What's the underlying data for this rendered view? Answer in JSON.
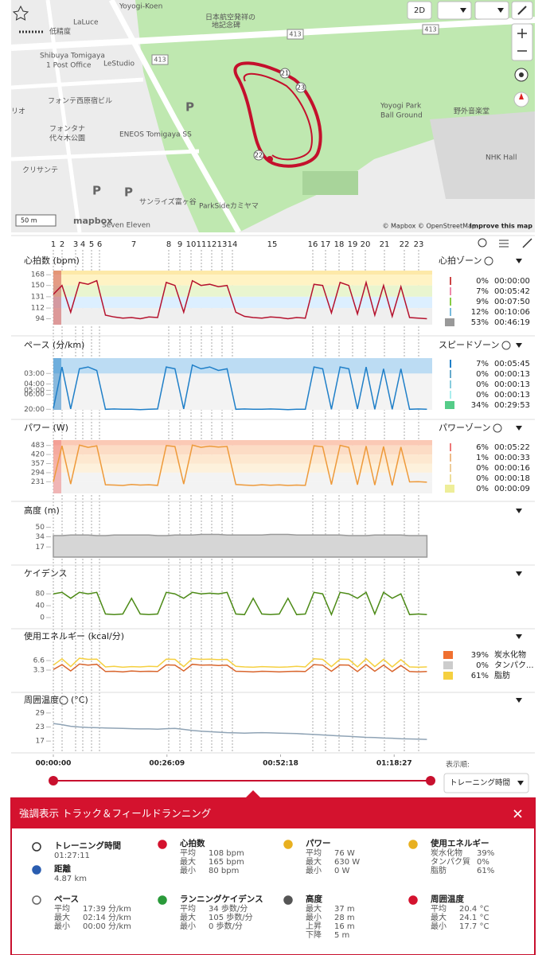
{
  "map": {
    "labels": [
      "Yoyogi-Koen",
      "LaLuce",
      "低精度",
      "Shibuya Tomigaya",
      "1 Post Office",
      "LeStudio",
      "フォンテ西原宿ビル",
      "リオ",
      "フォンタナ",
      "代々木公園",
      "ENEOS Tomigaya SS",
      "クリサンテ",
      "サンライズ富ヶ谷",
      "ParkSideカミヤマ",
      "Seven Eleven",
      "日本航空発祥の",
      "地記念碑",
      "Yoyogi Park",
      "Ball Ground",
      "野外音楽堂",
      "NHK Hall",
      "413",
      "413",
      "413",
      "P",
      "P",
      "P"
    ],
    "lap_markers": [
      "21",
      "23",
      "22"
    ],
    "scale": "50 m",
    "logo": "mapbox",
    "attribution": "© Mapbox © OpenStreetMap",
    "improve": "Improve this map",
    "mode_button": "2D"
  },
  "laps": [
    1,
    2,
    3,
    4,
    5,
    6,
    7,
    8,
    9,
    10,
    11,
    12,
    13,
    14,
    15,
    16,
    17,
    18,
    19,
    20,
    21,
    22,
    23
  ],
  "timeline": {
    "x": [
      0,
      2,
      4,
      6,
      8,
      10,
      12,
      14,
      16,
      18,
      20,
      22,
      24,
      26,
      28,
      30,
      32,
      34,
      36,
      38,
      40,
      42,
      44,
      46,
      48,
      50,
      52,
      54,
      56,
      58,
      60,
      62,
      64,
      66,
      68,
      70,
      72,
      74,
      76,
      78,
      80,
      82,
      84,
      86
    ],
    "xlim": [
      0,
      87.2
    ],
    "xticks": [
      {
        "value": 0,
        "label": "00:00:00"
      },
      {
        "value": 26.15,
        "label": "00:26:09"
      },
      {
        "value": 52.3,
        "label": "00:52:18"
      },
      {
        "value": 78.45,
        "label": "01:18:27"
      }
    ]
  },
  "sort": {
    "label": "表示順:",
    "value": "トレーニング時間"
  },
  "charts": [
    {
      "type": "line",
      "title": "心拍数 (bpm)",
      "ylim": [
        84,
        175
      ],
      "yticks": [
        94,
        112,
        131,
        150,
        168
      ],
      "series": [
        {
          "color": "#b5122e",
          "values": [
            135,
            150,
            105,
            155,
            152,
            158,
            100,
            97,
            95,
            96,
            94,
            97,
            96,
            155,
            150,
            105,
            158,
            150,
            152,
            148,
            150,
            105,
            98,
            96,
            95,
            97,
            96,
            94,
            96,
            95,
            152,
            150,
            104,
            155,
            150,
            102,
            155,
            100,
            150,
            98,
            148,
            96,
            95,
            94
          ]
        }
      ],
      "zones": {
        "title": "心拍ゾーン",
        "rows": [
          {
            "percent": "0%",
            "time": "00:00:00"
          },
          {
            "percent": "7%",
            "time": "00:05:42"
          },
          {
            "percent": "9%",
            "time": "00:07:50"
          },
          {
            "percent": "12%",
            "time": "00:10:06"
          },
          {
            "percent": "53%",
            "time": "00:46:19"
          }
        ]
      }
    },
    {
      "type": "line",
      "title": "ペース (分/km)",
      "scale": "reciprocal",
      "ylim": [
        2.2,
        22
      ],
      "yticks": [
        {
          "value": 3,
          "label": "03:00"
        },
        {
          "value": 4,
          "label": "04:00"
        },
        {
          "value": 5,
          "label": "05:00"
        },
        {
          "value": 6,
          "label": "06:00"
        },
        {
          "value": 20,
          "label": "20:00"
        }
      ],
      "series": [
        {
          "color": "#1f7fc8",
          "values": [
            18,
            2.6,
            19,
            2.7,
            2.6,
            2.8,
            20,
            19,
            20,
            20,
            21,
            20,
            19,
            2.6,
            2.7,
            19,
            2.5,
            2.7,
            2.6,
            2.8,
            2.7,
            20,
            19,
            20,
            20,
            19,
            20,
            21,
            20,
            20,
            2.6,
            2.7,
            20,
            2.6,
            2.7,
            19,
            2.6,
            20,
            2.7,
            20,
            2.7,
            20,
            19,
            20
          ]
        }
      ],
      "zones": {
        "title": "スピードゾーン",
        "rows": [
          {
            "percent": "7%",
            "time": "00:05:45"
          },
          {
            "percent": "0%",
            "time": "00:00:13"
          },
          {
            "percent": "0%",
            "time": "00:00:13"
          },
          {
            "percent": "0%",
            "time": "00:00:13"
          },
          {
            "percent": "34%",
            "time": "00:29:53"
          }
        ]
      }
    },
    {
      "type": "line",
      "title": "パワー (W)",
      "ylim": [
        150,
        520
      ],
      "yticks": [
        231,
        294,
        357,
        420,
        483
      ],
      "series": [
        {
          "color": "#ee9a3a",
          "values": [
            230,
            480,
            215,
            485,
            470,
            480,
            210,
            208,
            205,
            212,
            208,
            210,
            206,
            482,
            475,
            215,
            485,
            470,
            478,
            472,
            476,
            212,
            208,
            205,
            210,
            207,
            209,
            205,
            208,
            206,
            480,
            474,
            212,
            483,
            470,
            210,
            478,
            208,
            475,
            206,
            472,
            230,
            232,
            228
          ]
        }
      ],
      "zones": {
        "title": "パワーゾーン",
        "rows": [
          {
            "percent": "6%",
            "time": "00:05:22"
          },
          {
            "percent": "1%",
            "time": "00:00:33"
          },
          {
            "percent": "0%",
            "time": "00:00:16"
          },
          {
            "percent": "0%",
            "time": "00:00:18"
          },
          {
            "percent": "0%",
            "time": "00:00:09"
          }
        ]
      }
    },
    {
      "type": "area",
      "title": "高度 (m)",
      "ylim": [
        0,
        60
      ],
      "yticks": [
        17,
        34,
        50
      ],
      "series": [
        {
          "color": "#999999",
          "values": [
            36,
            36,
            37,
            37,
            37,
            36,
            36,
            37,
            37,
            37,
            37,
            37,
            36,
            36,
            37,
            37,
            37,
            38,
            38,
            38,
            37,
            37,
            37,
            37,
            37,
            38,
            38,
            38,
            37,
            37,
            37,
            37,
            37,
            37,
            36,
            36,
            36,
            37,
            37,
            37,
            37,
            36,
            36,
            36
          ]
        }
      ]
    },
    {
      "type": "line",
      "title": "ケイデンス",
      "ylim": [
        0,
        110
      ],
      "yticks": [
        0,
        40,
        80
      ],
      "series": [
        {
          "color": "#4c8a16",
          "values": [
            80,
            85,
            65,
            85,
            80,
            85,
            12,
            10,
            12,
            65,
            12,
            10,
            12,
            85,
            80,
            65,
            85,
            80,
            82,
            80,
            85,
            12,
            10,
            65,
            12,
            10,
            12,
            65,
            10,
            12,
            85,
            80,
            10,
            85,
            80,
            65,
            85,
            12,
            85,
            65,
            80,
            10,
            12,
            10
          ]
        }
      ]
    },
    {
      "type": "line",
      "title": "使用エネルギー (kcal/分)",
      "ylim": [
        0,
        11
      ],
      "yticks": [
        3.3,
        6.6
      ],
      "series": [
        {
          "color": "#f5d040",
          "values": [
            5,
            7.2,
            4.5,
            7.4,
            7,
            7.1,
            4.4,
            4.6,
            4.3,
            4.5,
            4.4,
            4.6,
            4.5,
            7.1,
            7,
            4.5,
            7.3,
            7,
            7.1,
            6.9,
            7,
            4.6,
            4.4,
            4.3,
            4.5,
            4.4,
            4.3,
            4.4,
            4.6,
            4.4,
            7.2,
            7,
            4.5,
            7.1,
            7,
            4.4,
            7.2,
            4.5,
            7,
            4.4,
            6.9,
            4.4,
            4.3,
            4.4
          ]
        },
        {
          "color": "#d9662e",
          "values": [
            3.5,
            5.2,
            3,
            5.4,
            5,
            5.3,
            2.8,
            2.9,
            2.7,
            3,
            2.8,
            2.9,
            2.8,
            5.1,
            5,
            3,
            5.3,
            5,
            5.1,
            4.9,
            5,
            2.9,
            2.8,
            2.7,
            2.9,
            2.8,
            2.7,
            2.8,
            2.9,
            2.8,
            5.2,
            5,
            2.9,
            5.1,
            5,
            2.8,
            5.2,
            2.9,
            5,
            2.8,
            4.9,
            2.8,
            2.7,
            2.8
          ]
        }
      ],
      "zones": {
        "rows": [
          {
            "percent": "39%",
            "label": "炭水化物",
            "color": "#f07030"
          },
          {
            "percent": "0%",
            "label": "タンパク...",
            "color": "#cccccc"
          },
          {
            "percent": "61%",
            "label": "脂肪",
            "color": "#f5d040"
          }
        ]
      }
    },
    {
      "type": "line",
      "title": "周囲温度",
      "unit": "(°C)",
      "ylim": [
        14,
        31
      ],
      "yticks": [
        17,
        23,
        29
      ],
      "series": [
        {
          "color": "#8fa3b5",
          "values": [
            24.5,
            24,
            23.3,
            23,
            22.8,
            22.7,
            22.6,
            22.5,
            22.4,
            22.3,
            22.2,
            22.2,
            22.1,
            22.3,
            22.4,
            22,
            21.5,
            21.2,
            21,
            20.8,
            20.6,
            20.5,
            20.4,
            20.5,
            20.6,
            20.5,
            20.4,
            20.3,
            20.2,
            20,
            19.8,
            19.6,
            19.4,
            19.2,
            19,
            18.8,
            18.6,
            18.5,
            18.3,
            18.2,
            18,
            17.9,
            17.8,
            17.7
          ]
        }
      ]
    }
  ],
  "summary": {
    "title": "強調表示 トラック＆フィールドランニング",
    "blocks": [
      {
        "title": "トレーニング時間",
        "value": "01:27:11"
      },
      {
        "title": "距離",
        "value": "4.87 km"
      },
      {
        "title": "心拍数",
        "rows": [
          [
            "平均",
            "108 bpm"
          ],
          [
            "最大",
            "165 bpm"
          ],
          [
            "最小",
            "80 bpm"
          ]
        ]
      },
      {
        "title": "パワー",
        "rows": [
          [
            "平均",
            "76 W"
          ],
          [
            "最大",
            "630 W"
          ],
          [
            "最小",
            "0 W"
          ]
        ]
      },
      {
        "title": "使用エネルギー",
        "rows": [
          [
            "炭水化物",
            "39%"
          ],
          [
            "タンパク質",
            "0%"
          ],
          [
            "脂肪",
            "61%"
          ]
        ]
      },
      {
        "title": "ペース",
        "rows": [
          [
            "平均",
            "17:39 分/km"
          ],
          [
            "最大",
            "02:14 分/km"
          ],
          [
            "最小",
            "00:00 分/km"
          ]
        ]
      },
      {
        "title": "ランニングケイデンス",
        "rows": [
          [
            "平均",
            "34 歩数/分"
          ],
          [
            "最大",
            "105 歩数/分"
          ],
          [
            "最小",
            "0 歩数/分"
          ]
        ]
      },
      {
        "title": "高度",
        "rows": [
          [
            "最大",
            "37 m"
          ],
          [
            "最小",
            "28 m"
          ],
          [
            "上昇",
            "16 m"
          ],
          [
            "下降",
            "5 m"
          ]
        ]
      },
      {
        "title": "周囲温度",
        "rows": [
          [
            "平均",
            "20.4 °C"
          ],
          [
            "最大",
            "24.1 °C"
          ],
          [
            "最小",
            "17.7 °C"
          ]
        ]
      }
    ]
  }
}
